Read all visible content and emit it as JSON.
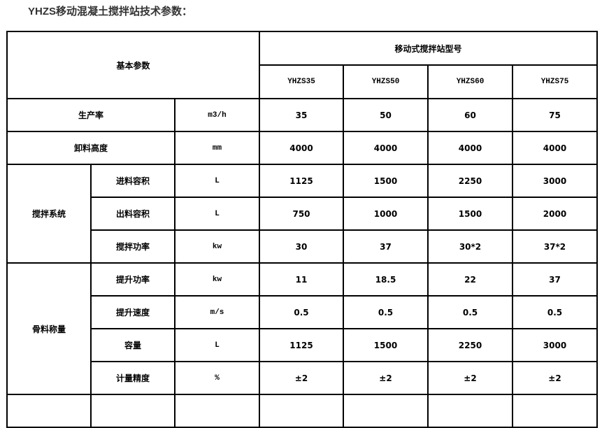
{
  "title": "YHZS移动混凝土搅拌站技术参数：",
  "header": {
    "basic": "基本参数",
    "model_group": "移动式搅拌站型号",
    "models": [
      "YHZS35",
      "YHZS50",
      "YHZS60",
      "YHZS75"
    ]
  },
  "rows": [
    {
      "label": "生产率",
      "unit": "m3/h",
      "values": [
        "35",
        "50",
        "60",
        "75"
      ]
    },
    {
      "label": "卸料高度",
      "unit": "mm",
      "values": [
        "4000",
        "4000",
        "4000",
        "4000"
      ]
    },
    {
      "group": "搅拌系统",
      "label": "进料容积",
      "unit": "L",
      "values": [
        "1125",
        "1500",
        "2250",
        "3000"
      ]
    },
    {
      "label": "出料容积",
      "unit": "L",
      "values": [
        "750",
        "1000",
        "1500",
        "2000"
      ]
    },
    {
      "label": "搅拌功率",
      "unit": "kw",
      "values": [
        "30",
        "37",
        "30*2",
        "37*2"
      ]
    },
    {
      "group": "骨料称量",
      "label": "提升功率",
      "unit": "kw",
      "values": [
        "11",
        "18.5",
        "22",
        "37"
      ]
    },
    {
      "label": "提升速度",
      "unit": "m/s",
      "values": [
        "0.5",
        "0.5",
        "0.5",
        "0.5"
      ]
    },
    {
      "label": "容量",
      "unit": "L",
      "values": [
        "1125",
        "1500",
        "2250",
        "3000"
      ]
    },
    {
      "label": "计量精度",
      "unit": "%",
      "values": [
        "±2",
        "±2",
        "±2",
        "±2"
      ]
    }
  ]
}
